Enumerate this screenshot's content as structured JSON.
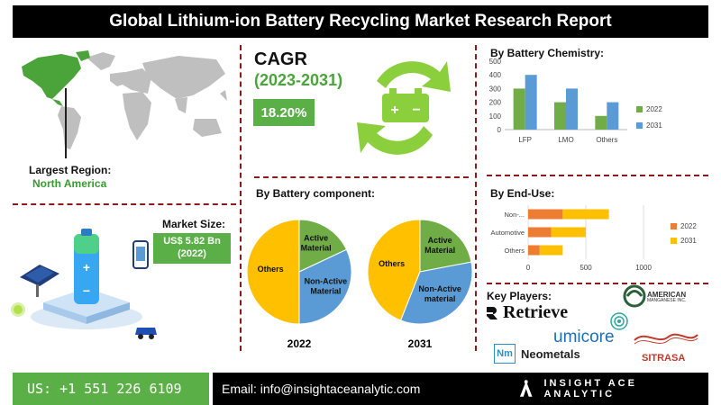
{
  "title": "Global Lithium-ion Battery Recycling Market Research Report",
  "largest_region": {
    "label": "Largest Region:",
    "value": "North America"
  },
  "market_size": {
    "label": "Market Size:",
    "value": "US$ 5.82 Bn",
    "year": "(2022)"
  },
  "cagr": {
    "label": "CAGR",
    "years": "(2023-2031)",
    "value": "18.20%"
  },
  "component": {
    "title": "By Battery component:"
  },
  "chemistry": {
    "title": "By Battery Chemistry:"
  },
  "enduse": {
    "title": "By End-Use:"
  },
  "key_players": {
    "title": "Key Players:",
    "names": [
      "Retrieve",
      "umicore",
      "Neometals",
      "AMERICAN",
      "MANGANESE INC.",
      "SITRASA"
    ],
    "neometals_badge": "Nm"
  },
  "footer": {
    "phone": "US: +1 551 226 6109",
    "email": "Email: info@insightaceanalytic.com",
    "brand": "INSIGHT ACE ANALYTIC"
  },
  "colors": {
    "green": "#5aaf46",
    "blue": "#5b9bd5",
    "orange": "#ed7d31",
    "gold": "#ffc000",
    "dashed": "#8b1a1a"
  },
  "chart_data": [
    {
      "type": "pie",
      "title": "2022",
      "slices": [
        {
          "label": "Others",
          "value": 50,
          "color": "#ffc000"
        },
        {
          "label": "Active Material",
          "value": 18,
          "color": "#70ad47"
        },
        {
          "label": "Non-Active Material",
          "value": 32,
          "color": "#5b9bd5"
        }
      ]
    },
    {
      "type": "pie",
      "title": "2031",
      "slices": [
        {
          "label": "Others",
          "value": 44,
          "color": "#ffc000"
        },
        {
          "label": "Active Material",
          "value": 22,
          "color": "#70ad47"
        },
        {
          "label": "Non-Active material",
          "value": 34,
          "color": "#5b9bd5"
        }
      ]
    },
    {
      "type": "bar",
      "title": "By Battery Chemistry:",
      "categories": [
        "LFP",
        "LMO",
        "Others"
      ],
      "series": [
        {
          "name": "2022",
          "values": [
            300,
            200,
            100
          ],
          "color": "#70ad47"
        },
        {
          "name": "2031",
          "values": [
            400,
            300,
            200
          ],
          "color": "#5b9bd5"
        }
      ],
      "ylim": [
        0,
        500
      ],
      "yticks": [
        "0",
        "100",
        "200",
        "300",
        "400",
        "500"
      ],
      "legend": "right"
    },
    {
      "type": "bar",
      "orientation": "horizontal",
      "stacked": true,
      "title": "By End-Use:",
      "categories": [
        "Non-...",
        "Automotive",
        "Others"
      ],
      "series": [
        {
          "name": "2022",
          "values": [
            300,
            200,
            100
          ],
          "color": "#ed7d31"
        },
        {
          "name": "2031",
          "values": [
            400,
            300,
            200
          ],
          "color": "#ffc000"
        }
      ],
      "xlim": [
        0,
        1000
      ],
      "xticks": [
        "0",
        "500",
        "1000"
      ],
      "grid": true,
      "legend": "right"
    }
  ]
}
